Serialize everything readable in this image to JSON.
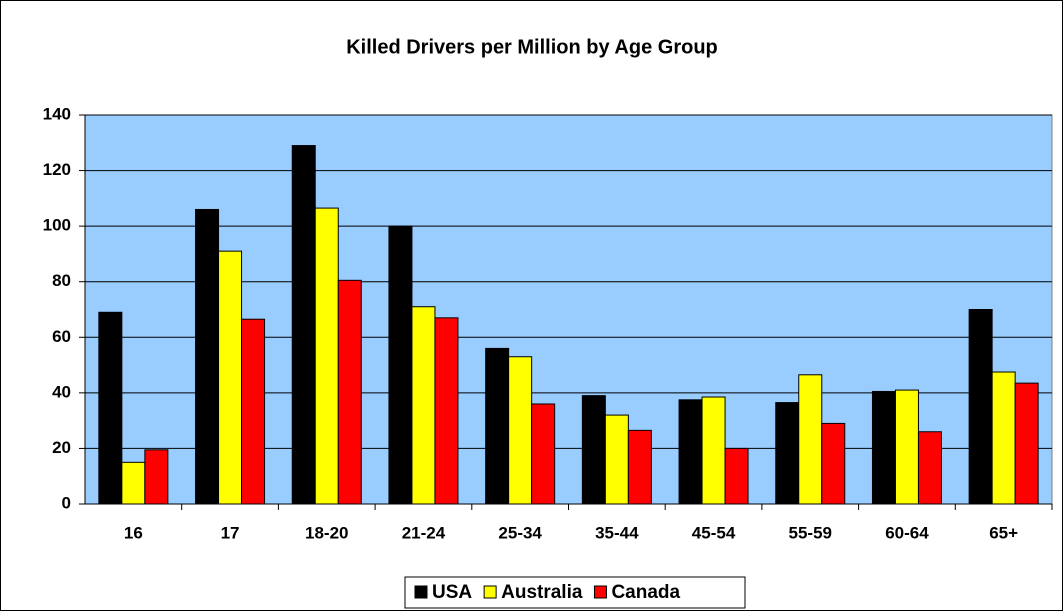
{
  "chart_data": {
    "type": "bar",
    "title": "Killed Drivers per Million by Age Group",
    "categories": [
      "16",
      "17",
      "18-20",
      "21-24",
      "25-34",
      "35-44",
      "45-54",
      "55-59",
      "60-64",
      "65+"
    ],
    "series": [
      {
        "name": "USA",
        "color": "#000000",
        "values": [
          69,
          106,
          129,
          100,
          56,
          39,
          37.5,
          36.5,
          40.5,
          70
        ]
      },
      {
        "name": "Australia",
        "color": "#ffff00",
        "values": [
          15,
          91,
          106.5,
          71,
          53,
          32,
          38.5,
          46.5,
          41,
          47.5
        ]
      },
      {
        "name": "Canada",
        "color": "#ff0000",
        "values": [
          19.5,
          66.5,
          80.5,
          67,
          36,
          26.5,
          20,
          29,
          26,
          43.5
        ]
      }
    ],
    "ylim": [
      0,
      140
    ],
    "yticks": [
      0,
      20,
      40,
      60,
      80,
      100,
      120,
      140
    ],
    "grid": true,
    "legend": "bottom"
  }
}
